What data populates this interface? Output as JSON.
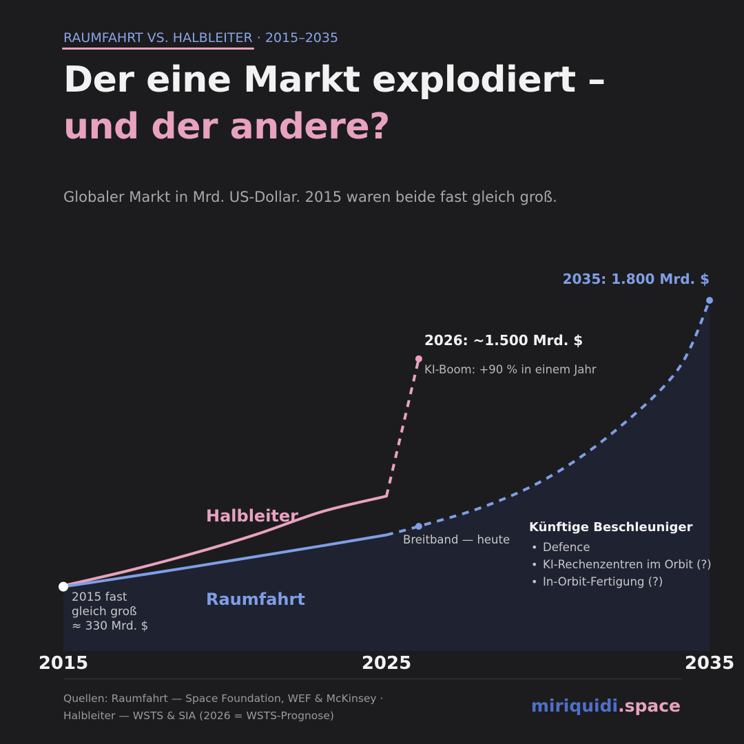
{
  "header": {
    "kicker_main": "RAUMFAHRT VS. HALBLEITER",
    "kicker_sep": " · ",
    "kicker_years": "2015–2035",
    "title_line1": "Der eine Markt explodiert –",
    "title_line2": "und der andere?",
    "subtitle": "Globaler Markt in Mrd. US-Dollar. 2015 waren beide fast gleich groß."
  },
  "colors": {
    "background": "#1c1c1e",
    "raumfahrt": "#7f9ee6",
    "halbleiter": "#e8a2bf",
    "area_fill": "#1f2231",
    "text_muted": "#b8b8b8"
  },
  "chart_data": {
    "type": "line",
    "x_ticks": [
      "2015",
      "2025",
      "2035"
    ],
    "series": [
      {
        "name": "Halbleiter",
        "color": "#e8a2bf",
        "points": [
          {
            "x": 2015,
            "y": 335,
            "style": "solid"
          },
          {
            "x": 2017,
            "y": 412,
            "style": "solid"
          },
          {
            "x": 2019,
            "y": 500,
            "style": "solid"
          },
          {
            "x": 2021,
            "y": 600,
            "style": "solid"
          },
          {
            "x": 2023,
            "y": 715,
            "style": "solid"
          },
          {
            "x": 2025,
            "y": 795,
            "style": "solid"
          },
          {
            "x": 2026,
            "y": 1500,
            "style": "dashed",
            "marker": true
          }
        ]
      },
      {
        "name": "Raumfahrt",
        "color": "#7f9ee6",
        "filled": true,
        "points": [
          {
            "x": 2015,
            "y": 330,
            "style": "solid"
          },
          {
            "x": 2017,
            "y": 380,
            "style": "solid"
          },
          {
            "x": 2019,
            "y": 432,
            "style": "solid"
          },
          {
            "x": 2021,
            "y": 486,
            "style": "solid"
          },
          {
            "x": 2023,
            "y": 540,
            "style": "solid"
          },
          {
            "x": 2025,
            "y": 596,
            "style": "solid"
          },
          {
            "x": 2026,
            "y": 640,
            "style": "dashed",
            "marker": true
          },
          {
            "x": 2028,
            "y": 740,
            "style": "dashed"
          },
          {
            "x": 2030,
            "y": 890,
            "style": "dashed"
          },
          {
            "x": 2032,
            "y": 1120,
            "style": "dashed"
          },
          {
            "x": 2034,
            "y": 1440,
            "style": "dashed"
          },
          {
            "x": 2035,
            "y": 1800,
            "style": "dashed",
            "marker": true
          }
        ]
      }
    ],
    "annotations": {
      "end_raumfahrt": "2035: 1.800 Mrd. $",
      "halbleiter_2026": "2026: ~1.500 Mrd. $",
      "ki_boom": "KI-Boom: +90 % in einem Jahr",
      "series_label_halbleiter": "Halbleiter",
      "series_label_raumfahrt": "Raumfahrt",
      "start_line1": "2015 fast",
      "start_line2": "gleich groß",
      "start_line3": "≈ 330 Mrd. $",
      "breitband": "Breitband — heute",
      "accelerators_title": "Künftige Beschleuniger",
      "accelerators": [
        "Defence",
        "KI-Rechenzentren im Orbit (?)",
        "In-Orbit-Fertigung (?)"
      ]
    }
  },
  "footer": {
    "sources_line1": "Quellen: Raumfahrt — Space Foundation, WEF & McKinsey ·",
    "sources_line2": "Halbleiter — WSTS & SIA (2026 = WSTS-Prognose)",
    "brand_part1": "miriquidi",
    "brand_part2": ".space"
  }
}
